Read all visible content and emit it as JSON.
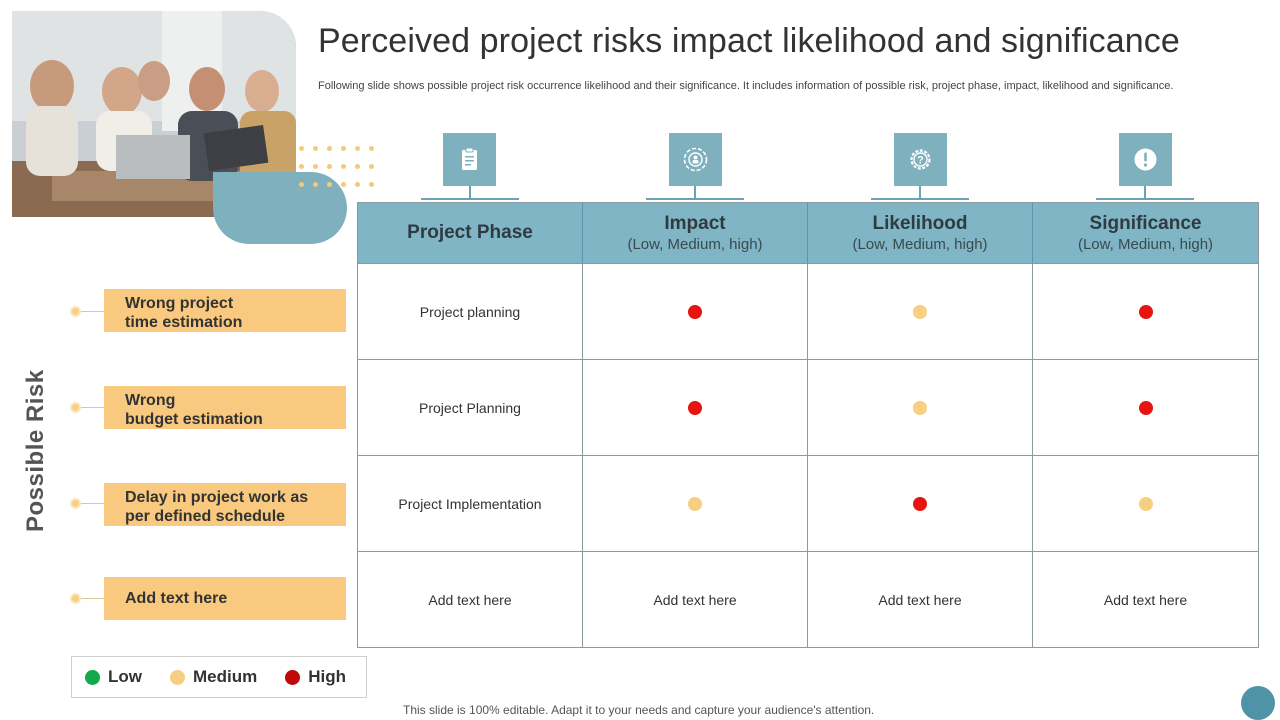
{
  "title": "Perceived project risks impact likelihood and significance",
  "subtitle": "Following slide shows possible project risk occurrence likelihood and their significance. It includes information of possible risk, project phase, impact, likelihood and significance.",
  "side_label": "Possible Risk",
  "header_icons": [
    "clipboard-icon",
    "target-people-icon",
    "question-gear-icon",
    "exclamation-icon"
  ],
  "columns": [
    {
      "title": "Project Phase",
      "sub": ""
    },
    {
      "title": "Impact",
      "sub": "(Low, Medium, high)"
    },
    {
      "title": "Likelihood",
      "sub": "(Low, Medium, high)"
    },
    {
      "title": "Significance",
      "sub": "(Low, Medium, high)"
    }
  ],
  "risks": [
    {
      "line1": "Wrong project",
      "line2": "time estimation"
    },
    {
      "line1": "Wrong",
      "line2": "budget estimation"
    },
    {
      "line1": "Delay in project work as",
      "line2": "per defined schedule"
    },
    {
      "line1": "Add text  here",
      "line2": ""
    }
  ],
  "rows": [
    {
      "phase": "Project planning",
      "impact": "high",
      "likelihood": "medium",
      "significance": "high"
    },
    {
      "phase": "Project Planning",
      "impact": "high",
      "likelihood": "medium",
      "significance": "high"
    },
    {
      "phase": "Project Implementation",
      "impact": "medium",
      "likelihood": "high",
      "significance": "medium"
    }
  ],
  "placeholder_row": [
    "Add text here",
    "Add text here",
    "Add text here",
    "Add text here"
  ],
  "legend": [
    {
      "label": "Low",
      "color": "#13a94b"
    },
    {
      "label": "Medium",
      "color": "#f6cf82"
    },
    {
      "label": "High",
      "color": "#c00a0a"
    }
  ],
  "colors": {
    "high": "#e8140f",
    "medium": "#f6cf82",
    "accent": "#7fb5c5"
  },
  "footer": "This slide is 100% editable. Adapt it to your needs and capture your audience's attention."
}
